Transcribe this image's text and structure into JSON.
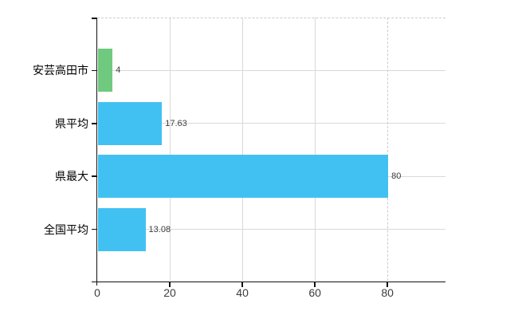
{
  "chart_data": {
    "type": "bar",
    "orientation": "horizontal",
    "title": "",
    "categories": [
      "安芸高田市",
      "県平均",
      "県最大",
      "全国平均"
    ],
    "values": [
      4,
      17.63,
      80,
      13.08
    ],
    "value_labels": [
      "4",
      "17.63",
      "80",
      "13.08"
    ],
    "bar_colors": [
      "#6fc97e",
      "#41c1f2",
      "#41c1f2",
      "#41c1f2"
    ],
    "x_ticks": [
      0,
      20,
      40,
      60,
      80
    ],
    "x_tick_labels": [
      "0",
      "20",
      "40",
      "60",
      "80"
    ],
    "dashed_x_ticks": [
      80
    ],
    "xlim": [
      0,
      96
    ],
    "grid": true,
    "legend": "none",
    "plot_top_border_dashed": true,
    "ylabel": "",
    "xlabel": ""
  },
  "colors": {
    "background": "#ffffff",
    "axis": "#111111",
    "gridline": "#d9d9d9",
    "dashed_line": "#cccccc",
    "category_text": "#000000",
    "tick_text": "#3d3d3d",
    "value_text": "#3d3d3d"
  }
}
